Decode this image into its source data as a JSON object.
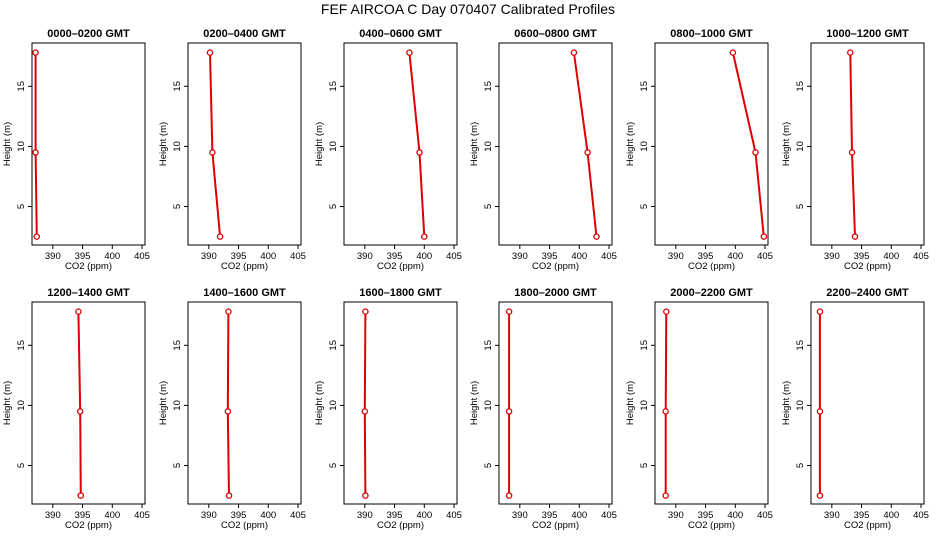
{
  "figure": {
    "title": "FEF AIRCOA C  Day 070407  Calibrated Profiles"
  },
  "chart_data": [
    {
      "type": "line",
      "title": "0000–0200 GMT",
      "xlabel": "CO2 (ppm)",
      "ylabel": "Height (m)",
      "x_ticks": [
        390,
        395,
        400,
        405
      ],
      "y_ticks": [
        5,
        10,
        15
      ],
      "xlim": [
        386.5,
        405.5
      ],
      "ylim": [
        1.8,
        18.6
      ],
      "series": [
        {
          "color": "#dd0000",
          "x": [
            387.1,
            387.1,
            387.3
          ],
          "y": [
            17.8,
            9.5,
            2.5
          ]
        }
      ]
    },
    {
      "type": "line",
      "title": "0200–0400 GMT",
      "xlabel": "CO2 (ppm)",
      "ylabel": "Height (m)",
      "x_ticks": [
        390,
        395,
        400,
        405
      ],
      "y_ticks": [
        5,
        10,
        15
      ],
      "xlim": [
        386.5,
        405.5
      ],
      "ylim": [
        1.8,
        18.6
      ],
      "series": [
        {
          "color": "#dd0000",
          "x": [
            390.2,
            390.6,
            391.9
          ],
          "y": [
            17.8,
            9.5,
            2.5
          ]
        }
      ]
    },
    {
      "type": "line",
      "title": "0400–0600 GMT",
      "xlabel": "CO2 (ppm)",
      "ylabel": "Height (m)",
      "x_ticks": [
        390,
        395,
        400,
        405
      ],
      "y_ticks": [
        5,
        10,
        15
      ],
      "xlim": [
        386.5,
        405.5
      ],
      "ylim": [
        1.8,
        18.6
      ],
      "series": [
        {
          "color": "#dd0000",
          "x": [
            397.5,
            399.2,
            400.0
          ],
          "y": [
            17.8,
            9.5,
            2.5
          ]
        }
      ]
    },
    {
      "type": "line",
      "title": "0600–0800 GMT",
      "xlabel": "CO2 (ppm)",
      "ylabel": "Height (m)",
      "x_ticks": [
        390,
        395,
        400,
        405
      ],
      "y_ticks": [
        5,
        10,
        15
      ],
      "xlim": [
        386.5,
        405.5
      ],
      "ylim": [
        1.8,
        18.6
      ],
      "series": [
        {
          "color": "#dd0000",
          "x": [
            399.1,
            401.4,
            402.9
          ],
          "y": [
            17.8,
            9.5,
            2.5
          ]
        }
      ]
    },
    {
      "type": "line",
      "title": "0800–1000 GMT",
      "xlabel": "CO2 (ppm)",
      "ylabel": "Height (m)",
      "x_ticks": [
        390,
        395,
        400,
        405
      ],
      "y_ticks": [
        5,
        10,
        15
      ],
      "xlim": [
        386.5,
        405.5
      ],
      "ylim": [
        1.8,
        18.6
      ],
      "series": [
        {
          "color": "#dd0000",
          "x": [
            399.6,
            403.4,
            404.8
          ],
          "y": [
            17.8,
            9.5,
            2.5
          ]
        }
      ]
    },
    {
      "type": "line",
      "title": "1000–1200 GMT",
      "xlabel": "CO2 (ppm)",
      "ylabel": "Height (m)",
      "x_ticks": [
        390,
        395,
        400,
        405
      ],
      "y_ticks": [
        5,
        10,
        15
      ],
      "xlim": [
        386.5,
        405.5
      ],
      "ylim": [
        1.8,
        18.6
      ],
      "series": [
        {
          "color": "#dd0000",
          "x": [
            393.1,
            393.4,
            393.9
          ],
          "y": [
            17.8,
            9.5,
            2.5
          ]
        }
      ]
    },
    {
      "type": "line",
      "title": "1200–1400 GMT",
      "xlabel": "CO2 (ppm)",
      "ylabel": "Height (m)",
      "x_ticks": [
        390,
        395,
        400,
        405
      ],
      "y_ticks": [
        5,
        10,
        15
      ],
      "xlim": [
        386.5,
        405.5
      ],
      "ylim": [
        1.8,
        18.6
      ],
      "series": [
        {
          "color": "#dd0000",
          "x": [
            394.3,
            394.6,
            394.7
          ],
          "y": [
            17.8,
            9.5,
            2.5
          ]
        }
      ]
    },
    {
      "type": "line",
      "title": "1400–1600 GMT",
      "xlabel": "CO2 (ppm)",
      "ylabel": "Height (m)",
      "x_ticks": [
        390,
        395,
        400,
        405
      ],
      "y_ticks": [
        5,
        10,
        15
      ],
      "xlim": [
        386.5,
        405.5
      ],
      "ylim": [
        1.8,
        18.6
      ],
      "series": [
        {
          "color": "#dd0000",
          "x": [
            393.3,
            393.2,
            393.4
          ],
          "y": [
            17.8,
            9.5,
            2.5
          ]
        }
      ]
    },
    {
      "type": "line",
      "title": "1600–1800 GMT",
      "xlabel": "CO2 (ppm)",
      "ylabel": "Height (m)",
      "x_ticks": [
        390,
        395,
        400,
        405
      ],
      "y_ticks": [
        5,
        10,
        15
      ],
      "xlim": [
        386.5,
        405.5
      ],
      "ylim": [
        1.8,
        18.6
      ],
      "series": [
        {
          "color": "#dd0000",
          "x": [
            390.1,
            390.0,
            390.1
          ],
          "y": [
            17.8,
            9.5,
            2.5
          ]
        }
      ]
    },
    {
      "type": "line",
      "title": "1800–2000 GMT",
      "xlabel": "CO2 (ppm)",
      "ylabel": "Height (m)",
      "x_ticks": [
        390,
        395,
        400,
        405
      ],
      "y_ticks": [
        5,
        10,
        15
      ],
      "xlim": [
        386.5,
        405.5
      ],
      "ylim": [
        1.8,
        18.6
      ],
      "series": [
        {
          "color": "#dd0000",
          "x": [
            388.2,
            388.2,
            388.2
          ],
          "y": [
            17.8,
            9.5,
            2.5
          ]
        }
      ]
    },
    {
      "type": "line",
      "title": "2000–2200 GMT",
      "xlabel": "CO2 (ppm)",
      "ylabel": "Height (m)",
      "x_ticks": [
        390,
        395,
        400,
        405
      ],
      "y_ticks": [
        5,
        10,
        15
      ],
      "xlim": [
        386.5,
        405.5
      ],
      "ylim": [
        1.8,
        18.6
      ],
      "series": [
        {
          "color": "#dd0000",
          "x": [
            388.4,
            388.3,
            388.3
          ],
          "y": [
            17.8,
            9.5,
            2.5
          ]
        }
      ]
    },
    {
      "type": "line",
      "title": "2200–2400 GMT",
      "xlabel": "CO2 (ppm)",
      "ylabel": "Height (m)",
      "x_ticks": [
        390,
        395,
        400,
        405
      ],
      "y_ticks": [
        5,
        10,
        15
      ],
      "xlim": [
        386.5,
        405.5
      ],
      "ylim": [
        1.8,
        18.6
      ],
      "series": [
        {
          "color": "#dd0000",
          "x": [
            388.0,
            388.0,
            388.0
          ],
          "y": [
            17.8,
            9.5,
            2.5
          ]
        }
      ]
    }
  ]
}
